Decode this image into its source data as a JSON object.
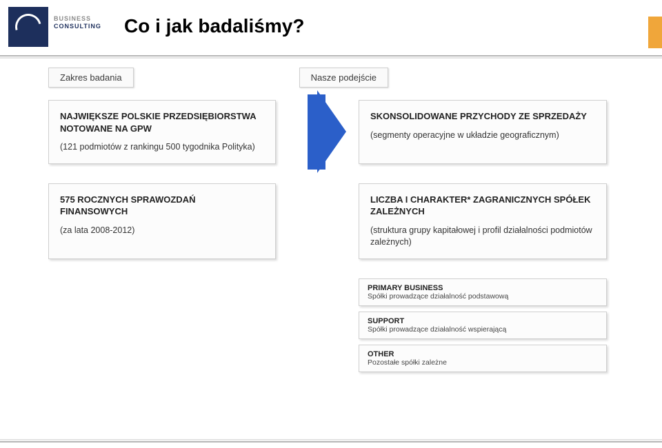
{
  "logo": {
    "brand_top": "BUSINESS",
    "brand_bottom": "CONSULTING",
    "square_bg": "#1d2f5c"
  },
  "accent_color": "#f0a63a",
  "title": "Co i jak badaliśmy?",
  "headers": {
    "left": "Zakres badania",
    "right": "Nasze podejście"
  },
  "row1": {
    "left_heading": "NAJWIĘKSZE POLSKIE PRZEDSIĘBIORSTWA NOTOWANE NA GPW",
    "left_sub": "(121 podmiotów z rankingu 500 tygodnika Polityka)",
    "right_heading": "SKONSOLIDOWANE PRZYCHODY ZE SPRZEDAŻY",
    "right_sub": "(segmenty operacyjne w układzie geograficznym)"
  },
  "row2": {
    "left_heading": "575 ROCZNYCH SPRAWOZDAŃ FINANSOWYCH",
    "left_sub": "(za lata 2008-2012)",
    "right_heading": "LICZBA I CHARAKTER* ZAGRANICZNYCH SPÓŁEK ZALEŻNYCH",
    "right_sub": "(struktura grupy kapitałowej i profil działalności podmiotów zależnych)"
  },
  "legend": [
    {
      "title": "PRIMARY BUSINESS",
      "sub": "Spółki prowadzące działalność podstawową"
    },
    {
      "title": "SUPPORT",
      "sub": "Spółki prowadzące działalność wspierającą"
    },
    {
      "title": "OTHER",
      "sub": "Pozostałe spółki zależne"
    }
  ],
  "arrow_color": "#2b5fc9",
  "rule_color": "#b6b6b6"
}
